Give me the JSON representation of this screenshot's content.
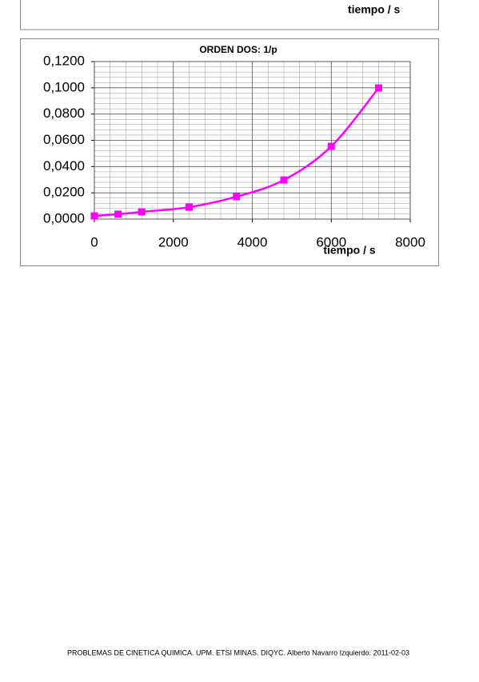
{
  "header_fragment": "tiempo / s",
  "chart_data": {
    "type": "line",
    "title": "ORDEN DOS: 1/p",
    "xlabel": "tiempo / s",
    "x": [
      0,
      600,
      1200,
      2400,
      3600,
      4800,
      6000,
      7200
    ],
    "series": [
      {
        "color": "#ff00ff",
        "values": [
          0.0024,
          0.0037,
          0.0055,
          0.0091,
          0.0171,
          0.0298,
          0.0554,
          0.0999
        ]
      }
    ],
    "xlim": [
      0,
      8000
    ],
    "xticks": [
      0,
      2000,
      4000,
      6000,
      8000
    ],
    "ylim": [
      0,
      0.12
    ],
    "yticks": [
      {
        "value": 0,
        "label": "0,0000"
      },
      {
        "value": 0.02,
        "label": "0,0200"
      },
      {
        "value": 0.04,
        "label": "0,0400"
      },
      {
        "value": 0.06,
        "label": "0,0600"
      },
      {
        "value": 0.08,
        "label": "0,0800"
      },
      {
        "value": 0.1,
        "label": "0,1000"
      },
      {
        "value": 0.12,
        "label": "0,1200"
      }
    ],
    "grid": true
  },
  "footer": "PROBLEMAS DE CINETICA QUIMICA. UPM. ETSI MINAS. DIQYC. Alberto Navarro Izquierdo. 2011-02-03"
}
